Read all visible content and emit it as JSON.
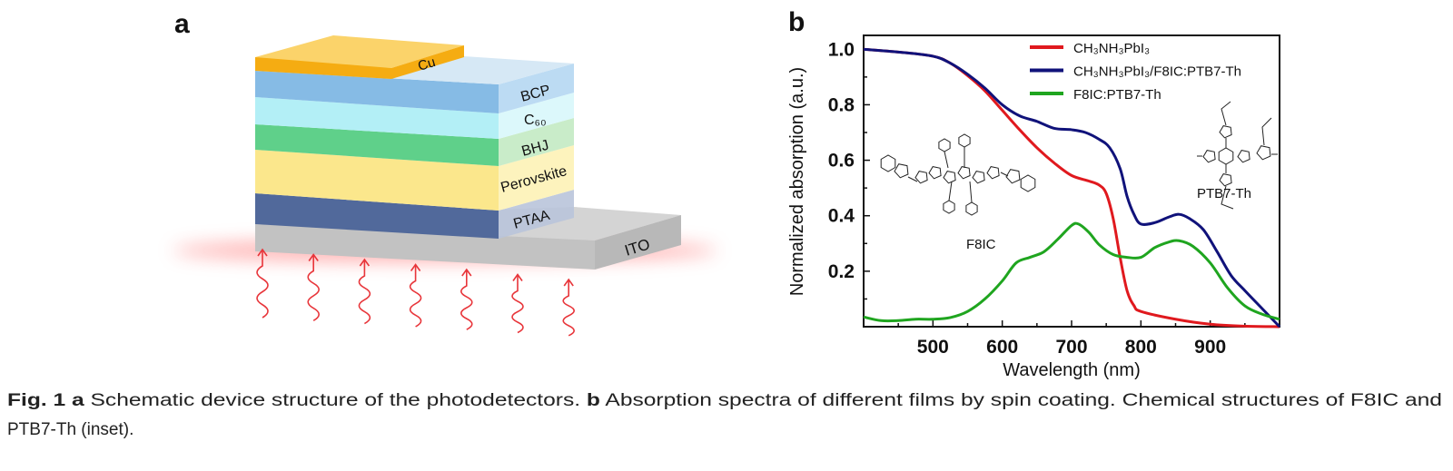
{
  "panel_a": {
    "label": "a",
    "layers": {
      "cu": "Cu",
      "bcp": "BCP",
      "c60": "C₆₀",
      "bhj": "BHJ",
      "perovskite": "Perovskite",
      "ptaa": "PTAA",
      "ito": "ITO"
    },
    "colors": {
      "cu": "#f7b21c",
      "bcp": "#8bbfe6",
      "c60": "#b6f0f6",
      "bhj": "#5fd08a",
      "perovskite": "#fbe88f",
      "ptaa": "#51699b",
      "ito": "#c4c4c4",
      "light": "#e8353a"
    },
    "light_arrows": 7
  },
  "panel_b": {
    "label": "b",
    "inset_labels": {
      "f8ic": "F8IC",
      "ptb7": "PTB7-Th"
    }
  },
  "chart_data": {
    "type": "line",
    "xlabel": "Wavelength (nm)",
    "ylabel": "Normalized absorption (a.u.)",
    "xlim": [
      400,
      1000
    ],
    "ylim": [
      0,
      1.05
    ],
    "xticks": [
      500,
      600,
      700,
      800,
      900
    ],
    "yticks": [
      0.2,
      0.4,
      0.6,
      0.8,
      1.0
    ],
    "ytick_labels": [
      "0.2",
      "0.4",
      "0.6",
      "0.8",
      "1.0"
    ],
    "grid": false,
    "legend_position": "top-right",
    "series": [
      {
        "name": "CH₃NH₃PbI₃",
        "color": "#e0191e",
        "x": [
          400,
          450,
          500,
          525,
          550,
          575,
          600,
          625,
          650,
          675,
          700,
          725,
          740,
          750,
          760,
          770,
          780,
          790,
          800,
          850,
          900,
          950,
          1000
        ],
        "y": [
          1.0,
          0.99,
          0.975,
          0.95,
          0.905,
          0.85,
          0.78,
          0.71,
          0.645,
          0.59,
          0.545,
          0.525,
          0.51,
          0.48,
          0.39,
          0.25,
          0.13,
          0.076,
          0.055,
          0.027,
          0.009,
          0.002,
          0.0
        ]
      },
      {
        "name": "CH₃NH₃PbI₃/F8IC:PTB7-Th",
        "color": "#10127a",
        "x": [
          400,
          450,
          500,
          525,
          550,
          575,
          600,
          625,
          650,
          675,
          700,
          720,
          740,
          755,
          770,
          780,
          790,
          800,
          820,
          840,
          855,
          870,
          890,
          910,
          930,
          950,
          975,
          1000
        ],
        "y": [
          1.0,
          0.99,
          0.975,
          0.95,
          0.91,
          0.86,
          0.8,
          0.76,
          0.74,
          0.715,
          0.71,
          0.7,
          0.675,
          0.645,
          0.57,
          0.47,
          0.405,
          0.37,
          0.375,
          0.395,
          0.405,
          0.39,
          0.35,
          0.27,
          0.185,
          0.13,
          0.065,
          0.0
        ]
      },
      {
        "name": "F8IC:PTB7-Th",
        "color": "#1fa51f",
        "x": [
          400,
          425,
          450,
          475,
          500,
          525,
          550,
          575,
          600,
          620,
          640,
          660,
          680,
          700,
          710,
          725,
          740,
          760,
          780,
          800,
          820,
          840,
          855,
          875,
          900,
          925,
          950,
          975,
          1000
        ],
        "y": [
          0.035,
          0.022,
          0.022,
          0.027,
          0.027,
          0.033,
          0.055,
          0.1,
          0.165,
          0.23,
          0.25,
          0.27,
          0.315,
          0.365,
          0.37,
          0.34,
          0.295,
          0.26,
          0.25,
          0.25,
          0.285,
          0.305,
          0.31,
          0.29,
          0.23,
          0.14,
          0.075,
          0.045,
          0.027
        ]
      }
    ]
  },
  "caption": {
    "fig": "Fig. 1",
    "a": "a",
    "a_text": " Schematic device structure of the photodetectors. ",
    "b": "b",
    "b_text": " Absorption spectra of different films by spin coating. Chemical structures of F8IC and",
    "line2": "PTB7-Th (inset)."
  }
}
